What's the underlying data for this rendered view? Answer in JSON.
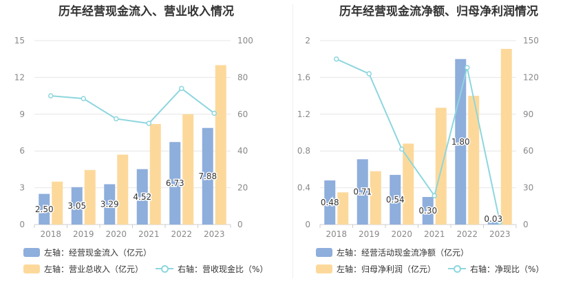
{
  "colors": {
    "bar_primary": "#8eaedc",
    "bar_secondary": "#fcd99b",
    "line": "#8dd6de",
    "axis_text": "#888888",
    "grid": "#e6e6e6"
  },
  "chart_data": [
    {
      "type": "bar",
      "title": "历年经营现金流入、营业收入情况",
      "categories": [
        "2018",
        "2019",
        "2020",
        "2021",
        "2022",
        "2023"
      ],
      "left_axis": {
        "ylim": [
          0,
          15
        ],
        "ticks": [
          "0",
          "3",
          "6",
          "9",
          "12",
          "15"
        ]
      },
      "right_axis": {
        "ylim": [
          0,
          100
        ],
        "ticks": [
          "0",
          "20",
          "40",
          "60",
          "80",
          "100"
        ]
      },
      "series": [
        {
          "name": "左轴：经营现金流入（亿元）",
          "axis": "left",
          "kind": "bar",
          "values": [
            2.5,
            3.05,
            3.29,
            4.52,
            6.73,
            7.88
          ],
          "labels": [
            "2.50",
            "3.05",
            "3.29",
            "4.52",
            "6.73",
            "7.88"
          ]
        },
        {
          "name": "左轴：营业总收入（亿元）",
          "axis": "left",
          "kind": "bar",
          "values": [
            3.5,
            4.45,
            5.7,
            8.2,
            9.0,
            13.0
          ]
        },
        {
          "name": "右轴：营收现金比（%）",
          "axis": "right",
          "kind": "line",
          "values": [
            70,
            68.5,
            57.5,
            55,
            74,
            60.5
          ]
        }
      ],
      "legend": [
        {
          "label": "左轴：经营现金流入（亿元）",
          "type": "bar-primary"
        },
        {
          "label": "左轴：营业总收入（亿元）",
          "type": "bar-secondary"
        },
        {
          "label": "右轴：营收现金比（%）",
          "type": "line"
        }
      ]
    },
    {
      "type": "bar",
      "title": "历年经营现金流净额、归母净利润情况",
      "categories": [
        "2018",
        "2019",
        "2020",
        "2021",
        "2022",
        "2023"
      ],
      "left_axis": {
        "ylim": [
          0,
          2
        ],
        "ticks": [
          "0",
          "0.4",
          "0.8",
          "1.2",
          "1.6",
          "2"
        ]
      },
      "right_axis": {
        "ylim": [
          0,
          150
        ],
        "ticks": [
          "0",
          "30",
          "60",
          "90",
          "120",
          "150"
        ]
      },
      "series": [
        {
          "name": "左轴：经营活动现金流净额（亿元）",
          "axis": "left",
          "kind": "bar",
          "values": [
            0.48,
            0.71,
            0.54,
            0.3,
            1.8,
            0.03
          ],
          "labels": [
            "0.48",
            "0.71",
            "0.54",
            "0.30",
            "1.80",
            "0.03"
          ]
        },
        {
          "name": "左轴：归母净利润（亿元）",
          "axis": "left",
          "kind": "bar",
          "values": [
            0.35,
            0.58,
            0.88,
            1.27,
            1.4,
            1.91
          ]
        },
        {
          "name": "右轴：净现比（%）",
          "axis": "right",
          "kind": "line",
          "values": [
            135,
            123,
            61.5,
            23.5,
            128,
            2
          ]
        }
      ],
      "legend": [
        {
          "label": "左轴：经营活动现金流净额（亿元）",
          "type": "bar-primary"
        },
        {
          "label": "左轴：归母净利润（亿元）",
          "type": "bar-secondary"
        },
        {
          "label": "右轴：净现比（%）",
          "type": "line"
        }
      ]
    }
  ]
}
